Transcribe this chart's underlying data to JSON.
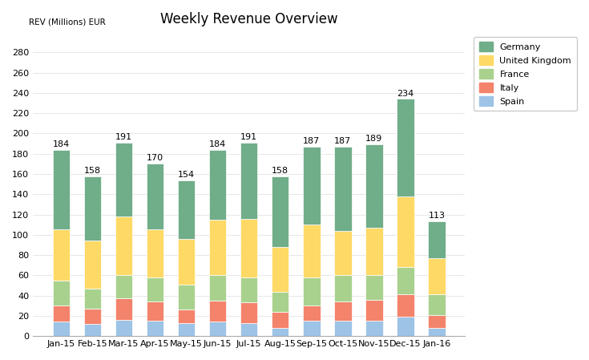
{
  "title": "Weekly Revenue Overview",
  "ylabel": "REV (Millions) EUR",
  "categories": [
    "Jan-15",
    "Feb-15",
    "Mar-15",
    "Apr-15",
    "May-15",
    "Jun-15",
    "Jul-15",
    "Aug-15",
    "Sep-15",
    "Oct-15",
    "Nov-15",
    "Dec-15",
    "Jan-16"
  ],
  "totals": [
    184,
    158,
    191,
    170,
    154,
    184,
    191,
    158,
    187,
    187,
    189,
    234,
    113
  ],
  "series": {
    "Spain": [
      14,
      12,
      16,
      15,
      13,
      14,
      13,
      8,
      15,
      15,
      15,
      19,
      8
    ],
    "Italy": [
      16,
      15,
      21,
      19,
      13,
      21,
      20,
      16,
      15,
      19,
      21,
      22,
      13
    ],
    "France": [
      25,
      20,
      23,
      24,
      25,
      25,
      25,
      20,
      28,
      26,
      24,
      27,
      20
    ],
    "United Kingdom": [
      50,
      47,
      58,
      47,
      45,
      55,
      58,
      44,
      52,
      44,
      47,
      70,
      36
    ],
    "Germany": [
      79,
      64,
      73,
      65,
      58,
      69,
      75,
      70,
      77,
      83,
      82,
      96,
      36
    ]
  },
  "colors": {
    "Spain": "#9dc3e6",
    "Italy": "#f4836b",
    "France": "#a9d18e",
    "United Kingdom": "#ffd965",
    "Germany": "#70ad89"
  },
  "ylim": [
    0,
    300
  ],
  "yticks": [
    0,
    20,
    40,
    60,
    80,
    100,
    120,
    140,
    160,
    180,
    200,
    220,
    240,
    260,
    280
  ],
  "bar_width": 0.55,
  "background_color": "#ffffff",
  "title_fontsize": 12,
  "label_fontsize": 8,
  "legend_order": [
    "Germany",
    "United Kingdom",
    "France",
    "Italy",
    "Spain"
  ]
}
